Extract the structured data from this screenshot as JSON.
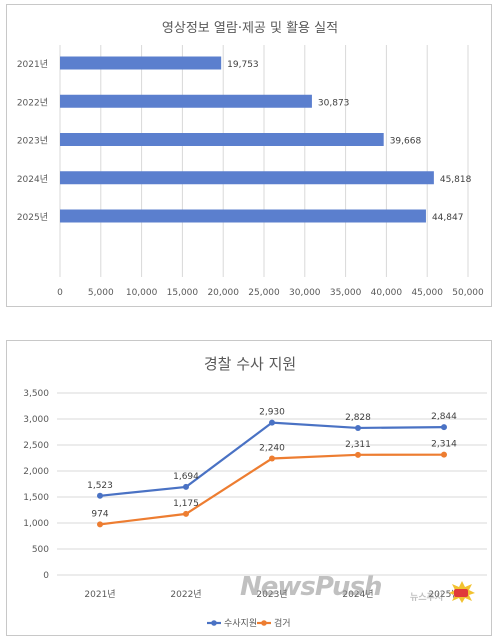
{
  "chart_data": [
    {
      "type": "bar",
      "orientation": "horizontal",
      "title": "영상정보 열람·제공 및 활용 실적",
      "categories": [
        "2021년",
        "2022년",
        "2023년",
        "2024년",
        "2025년"
      ],
      "values": [
        19753,
        30873,
        39668,
        45818,
        44847
      ],
      "value_labels": [
        "19,753",
        "30,873",
        "39,668",
        "45,818",
        "44,847"
      ],
      "xlim": [
        0,
        50000
      ],
      "x_ticks": [
        "0",
        "5,000",
        "10,000",
        "15,000",
        "20,000",
        "25,000",
        "30,000",
        "35,000",
        "40,000",
        "45,000",
        "50,000"
      ],
      "grid": "vertical",
      "color": "#5b7fce"
    },
    {
      "type": "line",
      "title": "경찰 수사 지원",
      "categories": [
        "2021년",
        "2022년",
        "2023년",
        "2024년",
        "2025년"
      ],
      "ylim": [
        0,
        3500
      ],
      "y_ticks": [
        "0",
        "500",
        "1,000",
        "1,500",
        "2,000",
        "2,500",
        "3,000",
        "3,500"
      ],
      "grid": "horizontal",
      "legend": "bottom",
      "series": [
        {
          "name": "수사지원",
          "values": [
            1523,
            1694,
            2930,
            2828,
            2844
          ],
          "labels": [
            "1,523",
            "1,694",
            "2,930",
            "2,828",
            "2,844"
          ],
          "color": "#4a72c4"
        },
        {
          "name": "검거",
          "values": [
            974,
            1175,
            2240,
            2311,
            2314
          ],
          "labels": [
            "974",
            "1,175",
            "2,240",
            "2,311",
            "2,314"
          ],
          "color": "#ed7d31"
        }
      ]
    }
  ],
  "watermark": {
    "brand": "NewsPush",
    "sub": "뉴스푸시"
  }
}
